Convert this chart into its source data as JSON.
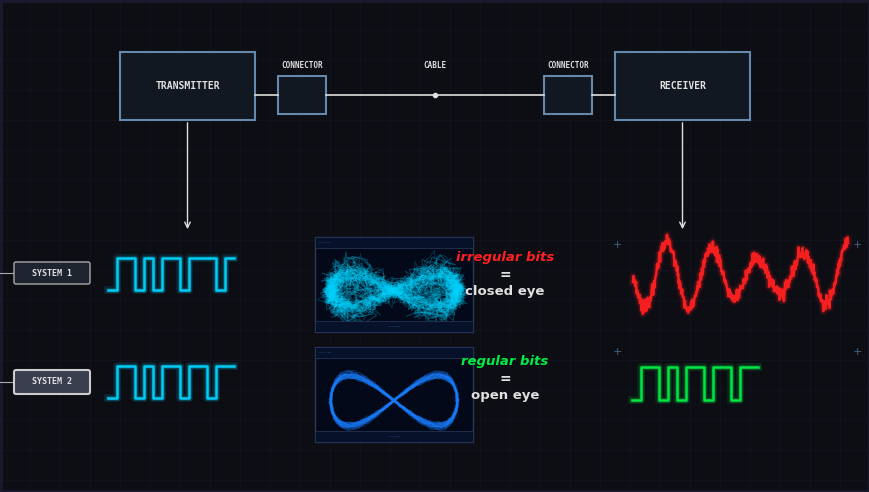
{
  "bg_color": "#0d0d14",
  "grid_color": "#1a2035",
  "transmitter_label": "TRANSMITTER",
  "receiver_label": "RECEIVER",
  "connector_label": "CONNECTOR",
  "cable_label": "CABLE",
  "system1_label": "SYSTEM 1",
  "system2_label": "SYSTEM 2",
  "irregular_bits_label": "irregular bits",
  "closed_eye_label": "closed eye",
  "regular_bits_label": "regular bits",
  "open_eye_label": "open eye",
  "equals_sign": "=",
  "cyan_color": "#00d4ff",
  "red_color": "#ff2020",
  "green_color": "#00ee44",
  "white_color": "#e0e0e0",
  "box_border_color": "#8899bb"
}
